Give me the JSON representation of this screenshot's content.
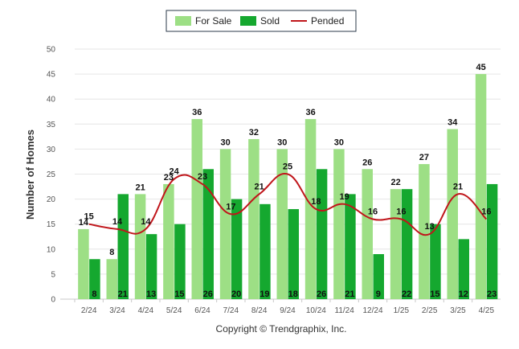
{
  "chart_data": {
    "type": "bar",
    "categories": [
      "2/24",
      "3/24",
      "4/24",
      "5/24",
      "6/24",
      "7/24",
      "8/24",
      "9/24",
      "10/24",
      "11/24",
      "12/24",
      "1/25",
      "2/25",
      "3/25",
      "4/25"
    ],
    "series": [
      {
        "name": "For Sale",
        "type": "bar",
        "color": "#9ddf85",
        "values": [
          14,
          8,
          21,
          23,
          36,
          30,
          32,
          30,
          36,
          30,
          26,
          22,
          27,
          34,
          45
        ]
      },
      {
        "name": "Sold",
        "type": "bar",
        "color": "#15a82f",
        "values": [
          8,
          21,
          13,
          15,
          26,
          20,
          19,
          18,
          26,
          21,
          9,
          22,
          15,
          12,
          23
        ]
      },
      {
        "name": "Pended",
        "type": "line",
        "color": "#c0161b",
        "values": [
          15,
          14,
          14,
          24,
          23,
          17,
          21,
          25,
          18,
          19,
          16,
          16,
          13,
          21,
          16
        ]
      }
    ],
    "ylabel": "Number of Homes",
    "xlabel": "",
    "ylim": [
      0,
      50
    ],
    "yticks": [
      0,
      5,
      10,
      15,
      20,
      25,
      30,
      35,
      40,
      45,
      50
    ],
    "grid": true,
    "legend": "top-center"
  },
  "credit": "Copyright © Trendgraphix, Inc."
}
